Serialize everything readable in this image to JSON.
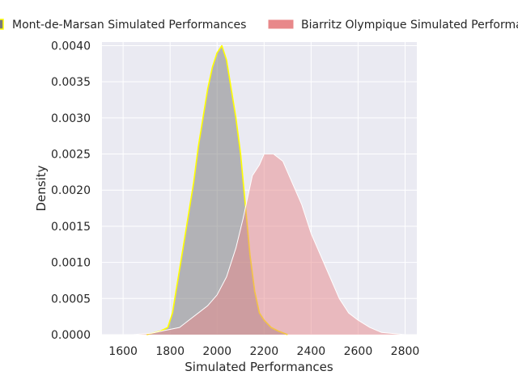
{
  "chart_data": {
    "type": "area",
    "xlabel": "Simulated Performances",
    "ylabel": "Density",
    "xlim": [
      1510,
      2850
    ],
    "ylim": [
      0,
      0.00405
    ],
    "x_ticks": [
      "1600",
      "1800",
      "2000",
      "2200",
      "2400",
      "2600",
      "2800"
    ],
    "y_ticks": [
      "0.0000",
      "0.0005",
      "0.0010",
      "0.0015",
      "0.0020",
      "0.0025",
      "0.0030",
      "0.0035",
      "0.0040"
    ],
    "grid": true,
    "legend_position": "top",
    "series": [
      {
        "name": "Mont-de-Marsan Simulated Performances",
        "fill": "#7a7a7a",
        "edge": "#ffff00",
        "points": [
          [
            1700,
            0
          ],
          [
            1760,
            5e-05
          ],
          [
            1790,
            0.0001
          ],
          [
            1810,
            0.0003
          ],
          [
            1830,
            0.0007
          ],
          [
            1855,
            0.0012
          ],
          [
            1880,
            0.0017
          ],
          [
            1900,
            0.0021
          ],
          [
            1920,
            0.0026
          ],
          [
            1940,
            0.003
          ],
          [
            1960,
            0.0034
          ],
          [
            1980,
            0.0037
          ],
          [
            2000,
            0.0039
          ],
          [
            2020,
            0.004
          ],
          [
            2040,
            0.0038
          ],
          [
            2060,
            0.0034
          ],
          [
            2080,
            0.003
          ],
          [
            2100,
            0.0025
          ],
          [
            2120,
            0.0018
          ],
          [
            2140,
            0.0011
          ],
          [
            2160,
            0.0006
          ],
          [
            2180,
            0.0003
          ],
          [
            2200,
            0.0002
          ],
          [
            2230,
            0.0001
          ],
          [
            2260,
            5e-05
          ],
          [
            2300,
            0
          ]
        ]
      },
      {
        "name": "Biarritz Olympique Simulated Performances",
        "fill": "#e8888a",
        "edge": "#ffffff",
        "points": [
          [
            1640,
            0
          ],
          [
            1720,
            2e-05
          ],
          [
            1780,
            6e-05
          ],
          [
            1840,
            0.0001
          ],
          [
            1880,
            0.0002
          ],
          [
            1920,
            0.0003
          ],
          [
            1960,
            0.0004
          ],
          [
            2000,
            0.00055
          ],
          [
            2040,
            0.0008
          ],
          [
            2080,
            0.0012
          ],
          [
            2110,
            0.0016
          ],
          [
            2130,
            0.0019
          ],
          [
            2150,
            0.0022
          ],
          [
            2180,
            0.00235
          ],
          [
            2200,
            0.0025
          ],
          [
            2240,
            0.0025
          ],
          [
            2280,
            0.0024
          ],
          [
            2320,
            0.0021
          ],
          [
            2360,
            0.0018
          ],
          [
            2400,
            0.0014
          ],
          [
            2440,
            0.0011
          ],
          [
            2480,
            0.0008
          ],
          [
            2520,
            0.0005
          ],
          [
            2560,
            0.0003
          ],
          [
            2600,
            0.0002
          ],
          [
            2650,
            0.0001
          ],
          [
            2700,
            3e-05
          ],
          [
            2800,
            0
          ]
        ]
      }
    ]
  }
}
